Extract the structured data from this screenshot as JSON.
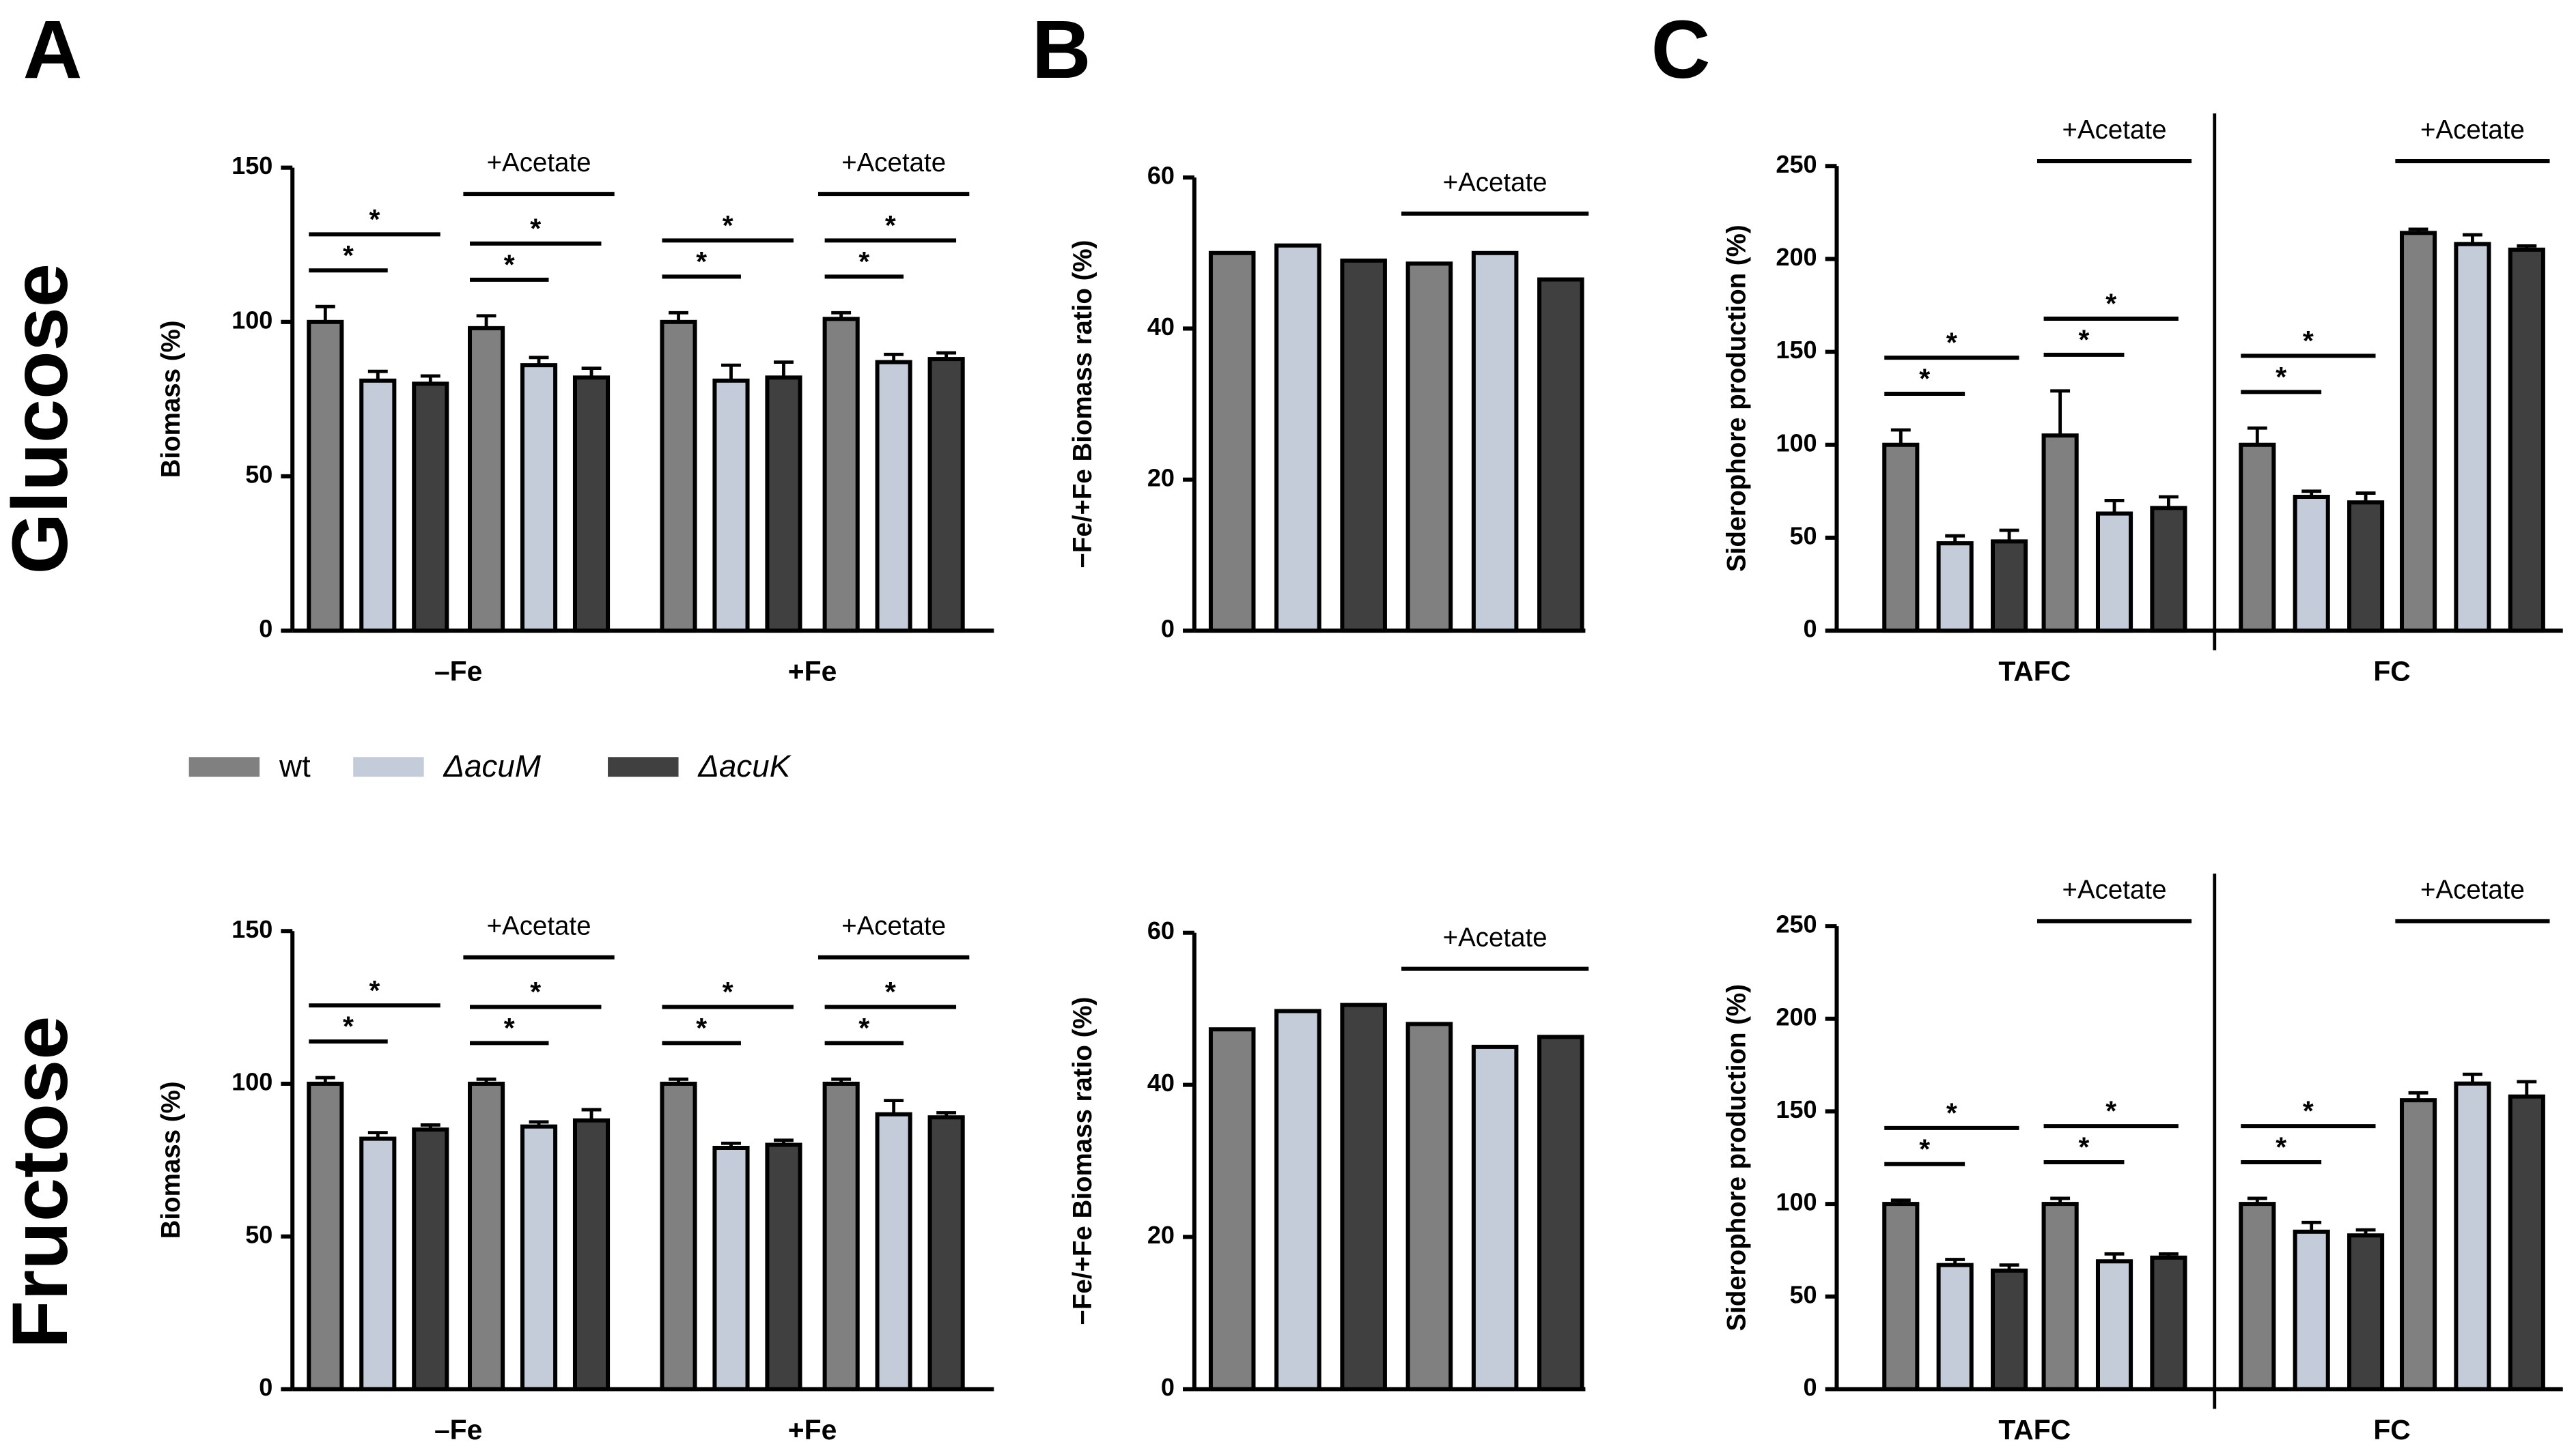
{
  "panels": [
    "A",
    "B",
    "C"
  ],
  "rows": [
    "Glucose",
    "Fructose"
  ],
  "legend": [
    {
      "name": "wt",
      "color": "#808080"
    },
    {
      "name": "ΔacuM",
      "color": "#c3ccd8"
    },
    {
      "name": "ΔacuK",
      "color": "#404040"
    }
  ],
  "chart_data": [
    {
      "type": "bar",
      "ylabel": "Biomass (%)",
      "ylim": [
        0,
        150
      ],
      "yticks": [
        0,
        50,
        100,
        150
      ],
      "groups": [
        "–Fe",
        "+Fe"
      ],
      "series": [
        {
          "values": [
            100,
            98,
            100,
            101
          ],
          "errors": [
            5,
            4,
            3,
            2
          ]
        },
        {
          "values": [
            81,
            86,
            81,
            87
          ],
          "errors": [
            3,
            2.5,
            5,
            2.5
          ]
        },
        {
          "values": [
            80,
            82,
            82,
            88
          ],
          "errors": [
            2.5,
            3,
            5,
            2
          ]
        }
      ],
      "annotations": [
        {
          "text": "+Acetate",
          "cluster": 1
        },
        {
          "text": "+Acetate",
          "cluster": 3
        }
      ],
      "brackets": [
        {
          "cluster": 0,
          "from": 0,
          "to": 1,
          "label": "*"
        },
        {
          "cluster": 0,
          "from": 0,
          "to": 2,
          "label": "*"
        },
        {
          "cluster": 1,
          "from": 0,
          "to": 1,
          "label": "*"
        },
        {
          "cluster": 1,
          "from": 0,
          "to": 2,
          "label": "*"
        },
        {
          "cluster": 2,
          "from": 0,
          "to": 1,
          "label": "*"
        },
        {
          "cluster": 2,
          "from": 0,
          "to": 2,
          "label": "*"
        },
        {
          "cluster": 3,
          "from": 0,
          "to": 1,
          "label": "*"
        },
        {
          "cluster": 3,
          "from": 0,
          "to": 2,
          "label": "*"
        }
      ]
    },
    {
      "type": "bar",
      "ylabel": "−Fe/+Fe Biomass ratio (%)",
      "ylim": [
        0,
        60
      ],
      "yticks": [
        0,
        20,
        40,
        60
      ],
      "series": [
        {
          "values": [
            50,
            48.6
          ]
        },
        {
          "values": [
            51,
            50
          ]
        },
        {
          "values": [
            49,
            46.5
          ]
        }
      ],
      "annotations": [
        {
          "text": "+Acetate",
          "cluster": 1
        }
      ]
    },
    {
      "type": "bar",
      "ylabel": "Siderophore production (%)",
      "ylim": [
        0,
        250
      ],
      "yticks": [
        0,
        50,
        100,
        150,
        200,
        250
      ],
      "groups": [
        "TAFC",
        "FC"
      ],
      "divider": true,
      "series": [
        {
          "values": [
            100,
            105,
            100,
            214
          ],
          "errors": [
            8,
            24,
            9,
            2
          ]
        },
        {
          "values": [
            47,
            63,
            72,
            208
          ],
          "errors": [
            4,
            7,
            3,
            5
          ]
        },
        {
          "values": [
            48,
            66,
            69,
            205
          ],
          "errors": [
            6,
            6,
            5,
            2
          ]
        }
      ],
      "annotations": [
        {
          "text": "+Acetate",
          "cluster": 1
        },
        {
          "text": "+Acetate",
          "cluster": 3
        }
      ],
      "brackets": [
        {
          "cluster": 0,
          "from": 0,
          "to": 1,
          "label": "*"
        },
        {
          "cluster": 0,
          "from": 0,
          "to": 2,
          "label": "*"
        },
        {
          "cluster": 1,
          "from": 0,
          "to": 1,
          "label": "*"
        },
        {
          "cluster": 1,
          "from": 0,
          "to": 2,
          "label": "*"
        },
        {
          "cluster": 2,
          "from": 0,
          "to": 1,
          "label": "*"
        },
        {
          "cluster": 2,
          "from": 0,
          "to": 2,
          "label": "*"
        }
      ]
    },
    {
      "type": "bar",
      "ylabel": "Biomass (%)",
      "ylim": [
        0,
        150
      ],
      "yticks": [
        0,
        50,
        100,
        150
      ],
      "groups": [
        "–Fe",
        "+Fe"
      ],
      "series": [
        {
          "values": [
            100,
            100,
            100,
            100
          ],
          "errors": [
            2,
            1.5,
            1.5,
            1.5
          ]
        },
        {
          "values": [
            82,
            86,
            79,
            90
          ],
          "errors": [
            2,
            1.5,
            1.5,
            4.5
          ]
        },
        {
          "values": [
            85,
            88,
            80,
            89
          ],
          "errors": [
            1.5,
            3.5,
            1.5,
            1.5
          ]
        }
      ],
      "annotations": [
        {
          "text": "+Acetate",
          "cluster": 1
        },
        {
          "text": "+Acetate",
          "cluster": 3
        }
      ],
      "brackets": [
        {
          "cluster": 0,
          "from": 0,
          "to": 1,
          "label": "*"
        },
        {
          "cluster": 0,
          "from": 0,
          "to": 2,
          "label": "*"
        },
        {
          "cluster": 1,
          "from": 0,
          "to": 1,
          "label": "*"
        },
        {
          "cluster": 1,
          "from": 0,
          "to": 2,
          "label": "*"
        },
        {
          "cluster": 2,
          "from": 0,
          "to": 1,
          "label": "*"
        },
        {
          "cluster": 2,
          "from": 0,
          "to": 2,
          "label": "*"
        },
        {
          "cluster": 3,
          "from": 0,
          "to": 1,
          "label": "*"
        },
        {
          "cluster": 3,
          "from": 0,
          "to": 2,
          "label": "*"
        }
      ]
    },
    {
      "type": "bar",
      "ylabel": "−Fe/+Fe Biomass ratio (%)",
      "ylim": [
        0,
        60
      ],
      "yticks": [
        0,
        20,
        40,
        60
      ],
      "series": [
        {
          "values": [
            47.3,
            48
          ]
        },
        {
          "values": [
            49.7,
            45
          ]
        },
        {
          "values": [
            50.5,
            46.3
          ]
        }
      ],
      "annotations": [
        {
          "text": "+Acetate",
          "cluster": 1
        }
      ]
    },
    {
      "type": "bar",
      "ylabel": "Siderophore production (%)",
      "ylim": [
        0,
        250
      ],
      "yticks": [
        0,
        50,
        100,
        150,
        200,
        250
      ],
      "groups": [
        "TAFC",
        "FC"
      ],
      "divider": true,
      "series": [
        {
          "values": [
            100,
            100,
            100,
            156
          ],
          "errors": [
            2,
            3,
            3,
            4
          ]
        },
        {
          "values": [
            67,
            69,
            85,
            165
          ],
          "errors": [
            3,
            4,
            5,
            5
          ]
        },
        {
          "values": [
            64,
            71,
            83,
            158
          ],
          "errors": [
            3,
            2,
            3,
            8
          ]
        }
      ],
      "annotations": [
        {
          "text": "+Acetate",
          "cluster": 1
        },
        {
          "text": "+Acetate",
          "cluster": 3
        }
      ],
      "brackets": [
        {
          "cluster": 0,
          "from": 0,
          "to": 1,
          "label": "*"
        },
        {
          "cluster": 0,
          "from": 0,
          "to": 2,
          "label": "*"
        },
        {
          "cluster": 1,
          "from": 0,
          "to": 1,
          "label": "*"
        },
        {
          "cluster": 1,
          "from": 0,
          "to": 2,
          "label": "*"
        },
        {
          "cluster": 2,
          "from": 0,
          "to": 1,
          "label": "*"
        },
        {
          "cluster": 2,
          "from": 0,
          "to": 2,
          "label": "*"
        }
      ]
    }
  ]
}
